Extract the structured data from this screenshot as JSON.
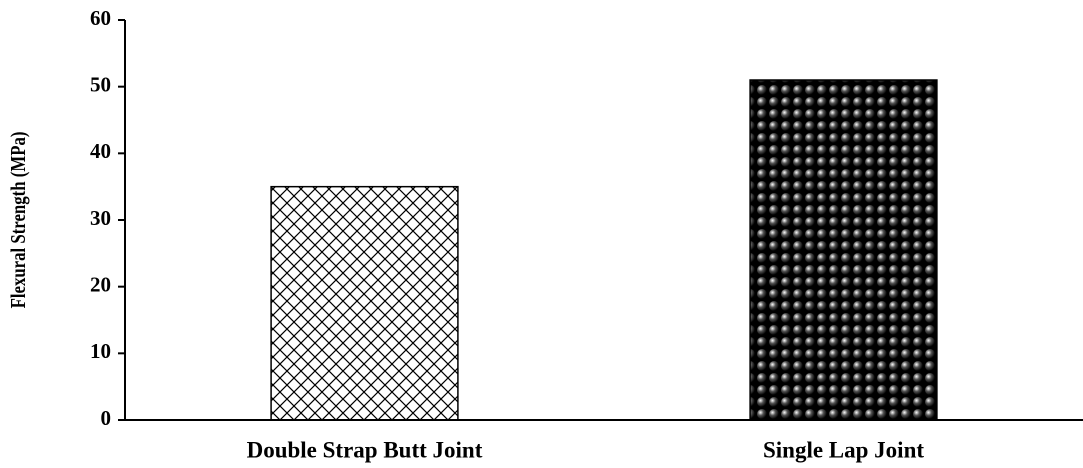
{
  "chart_data": {
    "type": "bar",
    "y_label": "Flexural Strength (MPa)",
    "categories": [
      "Double Strap Butt Joint",
      "Single Lap Joint"
    ],
    "values": [
      35,
      51
    ],
    "patterns": [
      "crosshatch",
      "dots"
    ],
    "color": "#000000",
    "ylim": [
      0,
      60
    ],
    "yticks": [
      0,
      10,
      20,
      30,
      40,
      50,
      60
    ],
    "grid": false
  }
}
